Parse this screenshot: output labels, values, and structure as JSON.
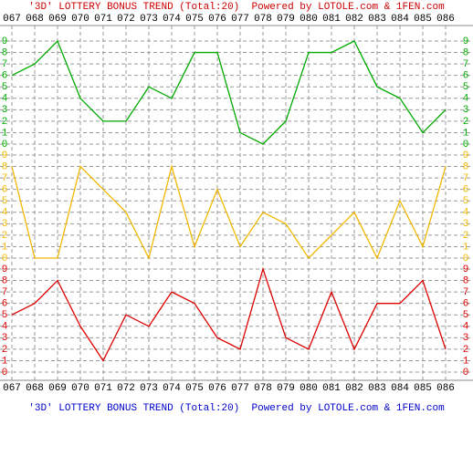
{
  "chart_data": {
    "type": "line",
    "title": "'3D' LOTTERY BONUS TREND (Total:20)  Powered by LOTOLE.com & 1FEN.com",
    "categories": [
      "067",
      "068",
      "069",
      "070",
      "071",
      "072",
      "073",
      "074",
      "075",
      "076",
      "077",
      "078",
      "079",
      "080",
      "081",
      "082",
      "083",
      "084",
      "085",
      "086"
    ],
    "grid": true,
    "panels": [
      {
        "color": "#00aa00",
        "values": [
          6,
          7,
          9,
          4,
          2,
          2,
          5,
          4,
          8,
          8,
          1,
          0,
          2,
          8,
          8,
          9,
          5,
          4,
          1,
          3
        ],
        "ylim": [
          0,
          9
        ],
        "yticks": [
          0,
          1,
          2,
          3,
          4,
          5,
          6,
          7,
          8,
          9
        ]
      },
      {
        "color": "#f0b800",
        "values": [
          8,
          0,
          0,
          8,
          6,
          4,
          0,
          8,
          1,
          6,
          1,
          4,
          3,
          0,
          2,
          4,
          0,
          5,
          1,
          8
        ],
        "ylim": [
          0,
          9
        ],
        "yticks": [
          0,
          1,
          2,
          3,
          4,
          5,
          6,
          7,
          8,
          9
        ]
      },
      {
        "color": "#dd0000",
        "values": [
          5,
          6,
          8,
          4,
          1,
          5,
          4,
          7,
          6,
          3,
          2,
          9,
          3,
          2,
          7,
          2,
          6,
          6,
          8,
          2
        ],
        "ylim": [
          0,
          9
        ],
        "yticks": [
          0,
          1,
          2,
          3,
          4,
          5,
          6,
          7,
          8,
          9
        ]
      }
    ]
  }
}
